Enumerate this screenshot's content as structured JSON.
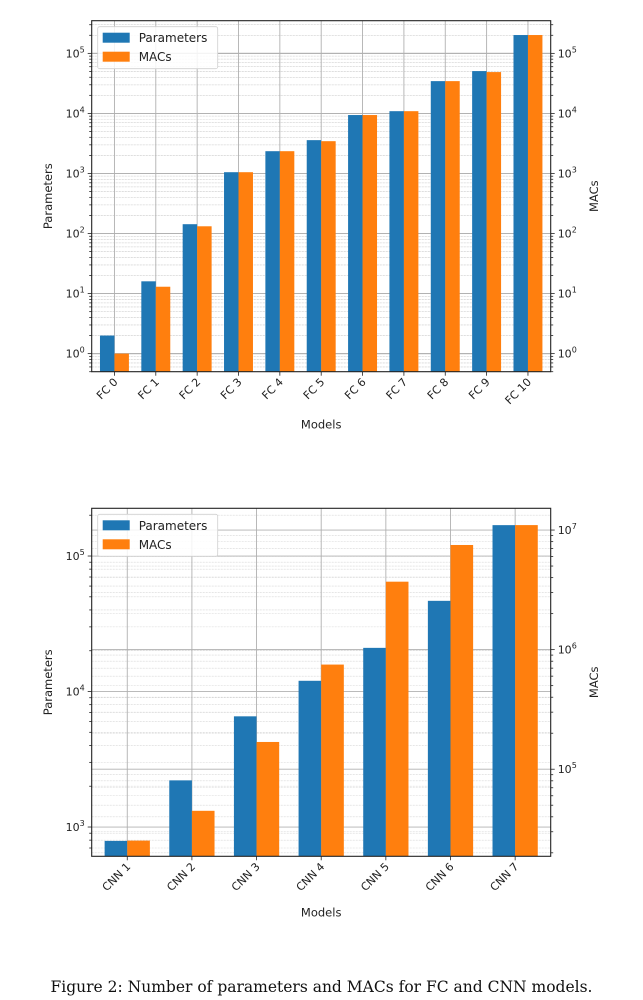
{
  "caption": "Figure 2: Number of parameters and MACs for FC and CNN models.",
  "colors": {
    "parameters": "#1f77b4",
    "macs": "#ff7f0e"
  },
  "chart_data": [
    {
      "type": "bar",
      "title": "",
      "xlabel": "Models",
      "ylabel": "Parameters",
      "ylabel_right": "MACs",
      "yscale": "log",
      "ylim": [
        0.5,
        350000
      ],
      "ylim_right": [
        0.5,
        350000
      ],
      "grid": "major and minor",
      "legend": "top-left",
      "categories": [
        "FC 0",
        "FC 1",
        "FC 2",
        "FC 3",
        "FC 4",
        "FC 5",
        "FC 6",
        "FC 7",
        "FC 8",
        "FC 9",
        "FC 10"
      ],
      "yticks": [
        1,
        10,
        100,
        1000,
        10000,
        100000
      ],
      "yticks_right": [
        1,
        10,
        100,
        1000,
        10000,
        100000
      ],
      "series": [
        {
          "name": "Parameters",
          "axis": "left",
          "values": [
            2,
            16,
            143,
            1050,
            2350,
            3590,
            9400,
            10900,
            34500,
            50700,
            202000
          ]
        },
        {
          "name": "MACs",
          "axis": "right",
          "values": [
            1,
            13,
            132,
            1050,
            2350,
            3450,
            9400,
            10900,
            34500,
            48800,
            202000
          ]
        }
      ]
    },
    {
      "type": "bar",
      "title": "",
      "xlabel": "Models",
      "ylabel": "Parameters",
      "ylabel_right": "MACs",
      "yscale": "log",
      "ylim": [
        608,
        225000
      ],
      "ylim_right": [
        18700,
        15200000
      ],
      "grid": "major and minor",
      "legend": "top-left",
      "categories": [
        "CNN 1",
        "CNN 2",
        "CNN 3",
        "CNN 4",
        "CNN 5",
        "CNN 6",
        "CNN 7"
      ],
      "yticks": [
        1000,
        10000,
        100000
      ],
      "yticks_right": [
        100000,
        1000000,
        10000000
      ],
      "series": [
        {
          "name": "Parameters",
          "axis": "left",
          "values": [
            790,
            2210,
            6560,
            12000,
            21000,
            46700,
            169000
          ]
        },
        {
          "name": "MACs",
          "axis": "right",
          "values": [
            25300,
            44900,
            169000,
            750000,
            3700000,
            7500000,
            11000000
          ]
        }
      ]
    }
  ]
}
